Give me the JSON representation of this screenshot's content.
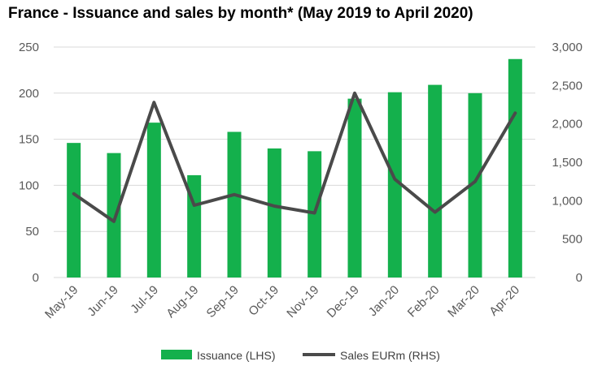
{
  "chart_data": {
    "type": "bar",
    "title": "France - Issuance and sales by month* (May 2019 to April 2020)",
    "categories": [
      "May-19",
      "Jun-19",
      "Jul-19",
      "Aug-19",
      "Sep-19",
      "Oct-19",
      "Nov-19",
      "Dec-19",
      "Jan-20",
      "Feb-20",
      "Mar-20",
      "Apr-20"
    ],
    "series": [
      {
        "name": "Issuance (LHS)",
        "type": "bar",
        "axis": "left",
        "color": "#14b04c",
        "values": [
          146,
          135,
          168,
          111,
          158,
          140,
          137,
          194,
          201,
          209,
          200,
          237
        ]
      },
      {
        "name": "Sales EURm (RHS)",
        "type": "line",
        "axis": "right",
        "color": "#4a4a4a",
        "values": [
          1090,
          730,
          2280,
          940,
          1080,
          930,
          840,
          2400,
          1280,
          850,
          1250,
          2140
        ]
      }
    ],
    "y_left": {
      "min": 0,
      "max": 250,
      "ticks": [
        "0",
        "50",
        "100",
        "150",
        "200",
        "250"
      ]
    },
    "y_right": {
      "min": 0,
      "max": 3000,
      "ticks": [
        "0",
        "500",
        "1,000",
        "1,500",
        "2,000",
        "2,500",
        "3,000"
      ]
    },
    "grid": true,
    "legend_position": "bottom"
  }
}
